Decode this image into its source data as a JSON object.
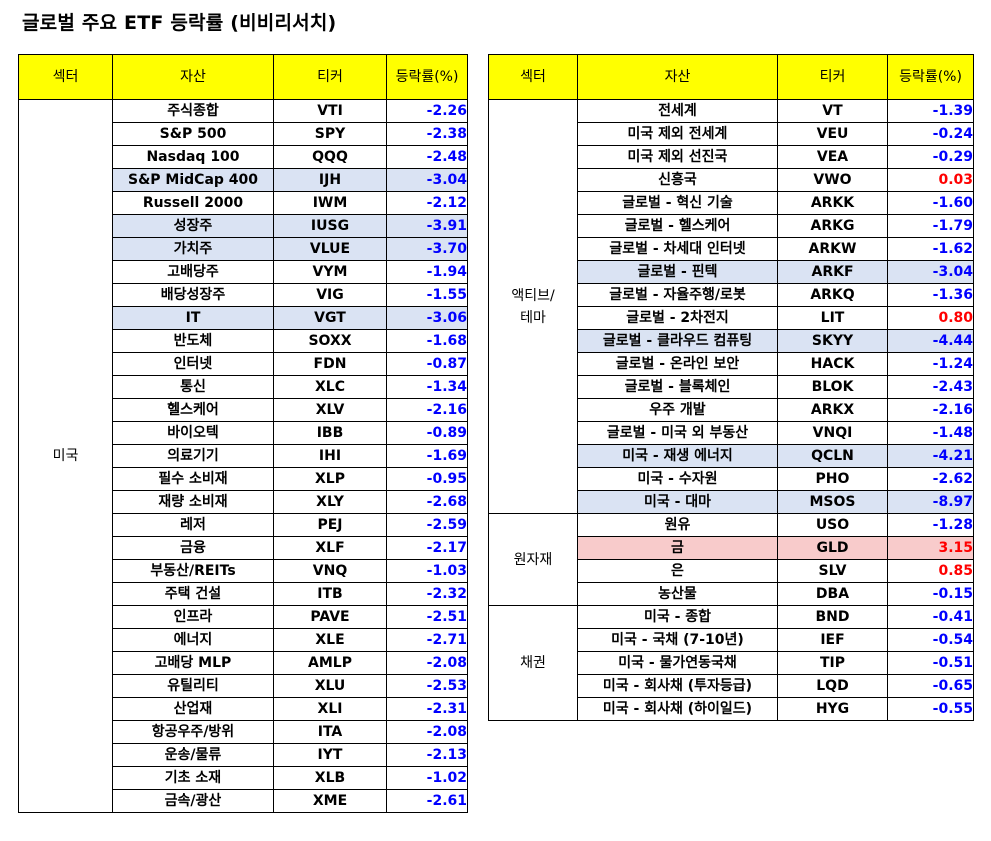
{
  "title": "글로벌 주요 ETF 등락률 (비비리서치)",
  "headers": {
    "sector": "섹터",
    "asset": "자산",
    "ticker": "티커",
    "change": "등락률(%)"
  },
  "colors": {
    "header_bg": "#ffff00",
    "negative": "#0000ff",
    "positive": "#ff0000",
    "highlight_blue": "#dae3f3",
    "highlight_red": "#f8cbcb"
  },
  "left_table": [
    {
      "sector": "미국",
      "rows": [
        {
          "asset": "주식종합",
          "ticker": "VTI",
          "change": "-2.26"
        },
        {
          "asset": "S&P 500",
          "ticker": "SPY",
          "change": "-2.38"
        },
        {
          "asset": "Nasdaq 100",
          "ticker": "QQQ",
          "change": "-2.48"
        },
        {
          "asset": "S&P MidCap 400",
          "ticker": "IJH",
          "change": "-3.04",
          "highlight": "blue"
        },
        {
          "asset": "Russell 2000",
          "ticker": "IWM",
          "change": "-2.12"
        },
        {
          "asset": "성장주",
          "ticker": "IUSG",
          "change": "-3.91",
          "highlight": "blue"
        },
        {
          "asset": "가치주",
          "ticker": "VLUE",
          "change": "-3.70",
          "highlight": "blue"
        },
        {
          "asset": "고배당주",
          "ticker": "VYM",
          "change": "-1.94"
        },
        {
          "asset": "배당성장주",
          "ticker": "VIG",
          "change": "-1.55"
        },
        {
          "asset": "IT",
          "ticker": "VGT",
          "change": "-3.06",
          "highlight": "blue"
        },
        {
          "asset": "반도체",
          "ticker": "SOXX",
          "change": "-1.68"
        },
        {
          "asset": "인터넷",
          "ticker": "FDN",
          "change": "-0.87"
        },
        {
          "asset": "통신",
          "ticker": "XLC",
          "change": "-1.34"
        },
        {
          "asset": "헬스케어",
          "ticker": "XLV",
          "change": "-2.16"
        },
        {
          "asset": "바이오텍",
          "ticker": "IBB",
          "change": "-0.89"
        },
        {
          "asset": "의료기기",
          "ticker": "IHI",
          "change": "-1.69"
        },
        {
          "asset": "필수 소비재",
          "ticker": "XLP",
          "change": "-0.95"
        },
        {
          "asset": "재량 소비재",
          "ticker": "XLY",
          "change": "-2.68"
        },
        {
          "asset": "레저",
          "ticker": "PEJ",
          "change": "-2.59"
        },
        {
          "asset": "금융",
          "ticker": "XLF",
          "change": "-2.17"
        },
        {
          "asset": "부동산/REITs",
          "ticker": "VNQ",
          "change": "-1.03"
        },
        {
          "asset": "주택 건설",
          "ticker": "ITB",
          "change": "-2.32"
        },
        {
          "asset": "인프라",
          "ticker": "PAVE",
          "change": "-2.51"
        },
        {
          "asset": "에너지",
          "ticker": "XLE",
          "change": "-2.71"
        },
        {
          "asset": "고배당 MLP",
          "ticker": "AMLP",
          "change": "-2.08"
        },
        {
          "asset": "유틸리티",
          "ticker": "XLU",
          "change": "-2.53"
        },
        {
          "asset": "산업재",
          "ticker": "XLI",
          "change": "-2.31"
        },
        {
          "asset": "항공우주/방위",
          "ticker": "ITA",
          "change": "-2.08"
        },
        {
          "asset": "운송/물류",
          "ticker": "IYT",
          "change": "-2.13"
        },
        {
          "asset": "기초 소재",
          "ticker": "XLB",
          "change": "-1.02"
        },
        {
          "asset": "금속/광산",
          "ticker": "XME",
          "change": "-2.61"
        }
      ]
    }
  ],
  "right_table": [
    {
      "sector": "액티브/\n테마",
      "rows": [
        {
          "asset": "전세계",
          "ticker": "VT",
          "change": "-1.39"
        },
        {
          "asset": "미국 제외 전세계",
          "ticker": "VEU",
          "change": "-0.24"
        },
        {
          "asset": "미국 제외 선진국",
          "ticker": "VEA",
          "change": "-0.29"
        },
        {
          "asset": "신흥국",
          "ticker": "VWO",
          "change": "0.03"
        },
        {
          "asset": "글로벌 - 혁신 기술",
          "ticker": "ARKK",
          "change": "-1.60"
        },
        {
          "asset": "글로벌 - 헬스케어",
          "ticker": "ARKG",
          "change": "-1.79"
        },
        {
          "asset": "글로벌 - 차세대 인터넷",
          "ticker": "ARKW",
          "change": "-1.62"
        },
        {
          "asset": "글로벌 - 핀텍",
          "ticker": "ARKF",
          "change": "-3.04",
          "highlight": "blue"
        },
        {
          "asset": "글로벌 - 자율주행/로봇",
          "ticker": "ARKQ",
          "change": "-1.36"
        },
        {
          "asset": "글로벌 - 2차전지",
          "ticker": "LIT",
          "change": "0.80"
        },
        {
          "asset": "글로벌 - 클라우드 컴퓨팅",
          "ticker": "SKYY",
          "change": "-4.44",
          "highlight": "blue"
        },
        {
          "asset": "글로벌 - 온라인 보안",
          "ticker": "HACK",
          "change": "-1.24"
        },
        {
          "asset": "글로벌 - 블록체인",
          "ticker": "BLOK",
          "change": "-2.43"
        },
        {
          "asset": "우주 개발",
          "ticker": "ARKX",
          "change": "-2.16"
        },
        {
          "asset": "글로벌 - 미국 외 부동산",
          "ticker": "VNQI",
          "change": "-1.48"
        },
        {
          "asset": "미국 - 재생 에너지",
          "ticker": "QCLN",
          "change": "-4.21",
          "highlight": "blue"
        },
        {
          "asset": "미국 - 수자원",
          "ticker": "PHO",
          "change": "-2.62"
        },
        {
          "asset": "미국 - 대마",
          "ticker": "MSOS",
          "change": "-8.97",
          "highlight": "blue"
        }
      ]
    },
    {
      "sector": "원자재",
      "rows": [
        {
          "asset": "원유",
          "ticker": "USO",
          "change": "-1.28"
        },
        {
          "asset": "금",
          "ticker": "GLD",
          "change": "3.15",
          "highlight": "red"
        },
        {
          "asset": "은",
          "ticker": "SLV",
          "change": "0.85"
        },
        {
          "asset": "농산물",
          "ticker": "DBA",
          "change": "-0.15"
        }
      ]
    },
    {
      "sector": "채권",
      "rows": [
        {
          "asset": "미국 - 종합",
          "ticker": "BND",
          "change": "-0.41"
        },
        {
          "asset": "미국 - 국채 (7-10년)",
          "ticker": "IEF",
          "change": "-0.54"
        },
        {
          "asset": "미국 - 물가연동국채",
          "ticker": "TIP",
          "change": "-0.51"
        },
        {
          "asset": "미국 - 회사채 (투자등급)",
          "ticker": "LQD",
          "change": "-0.65"
        },
        {
          "asset": "미국 - 회사채 (하이일드)",
          "ticker": "HYG",
          "change": "-0.55"
        }
      ]
    }
  ]
}
